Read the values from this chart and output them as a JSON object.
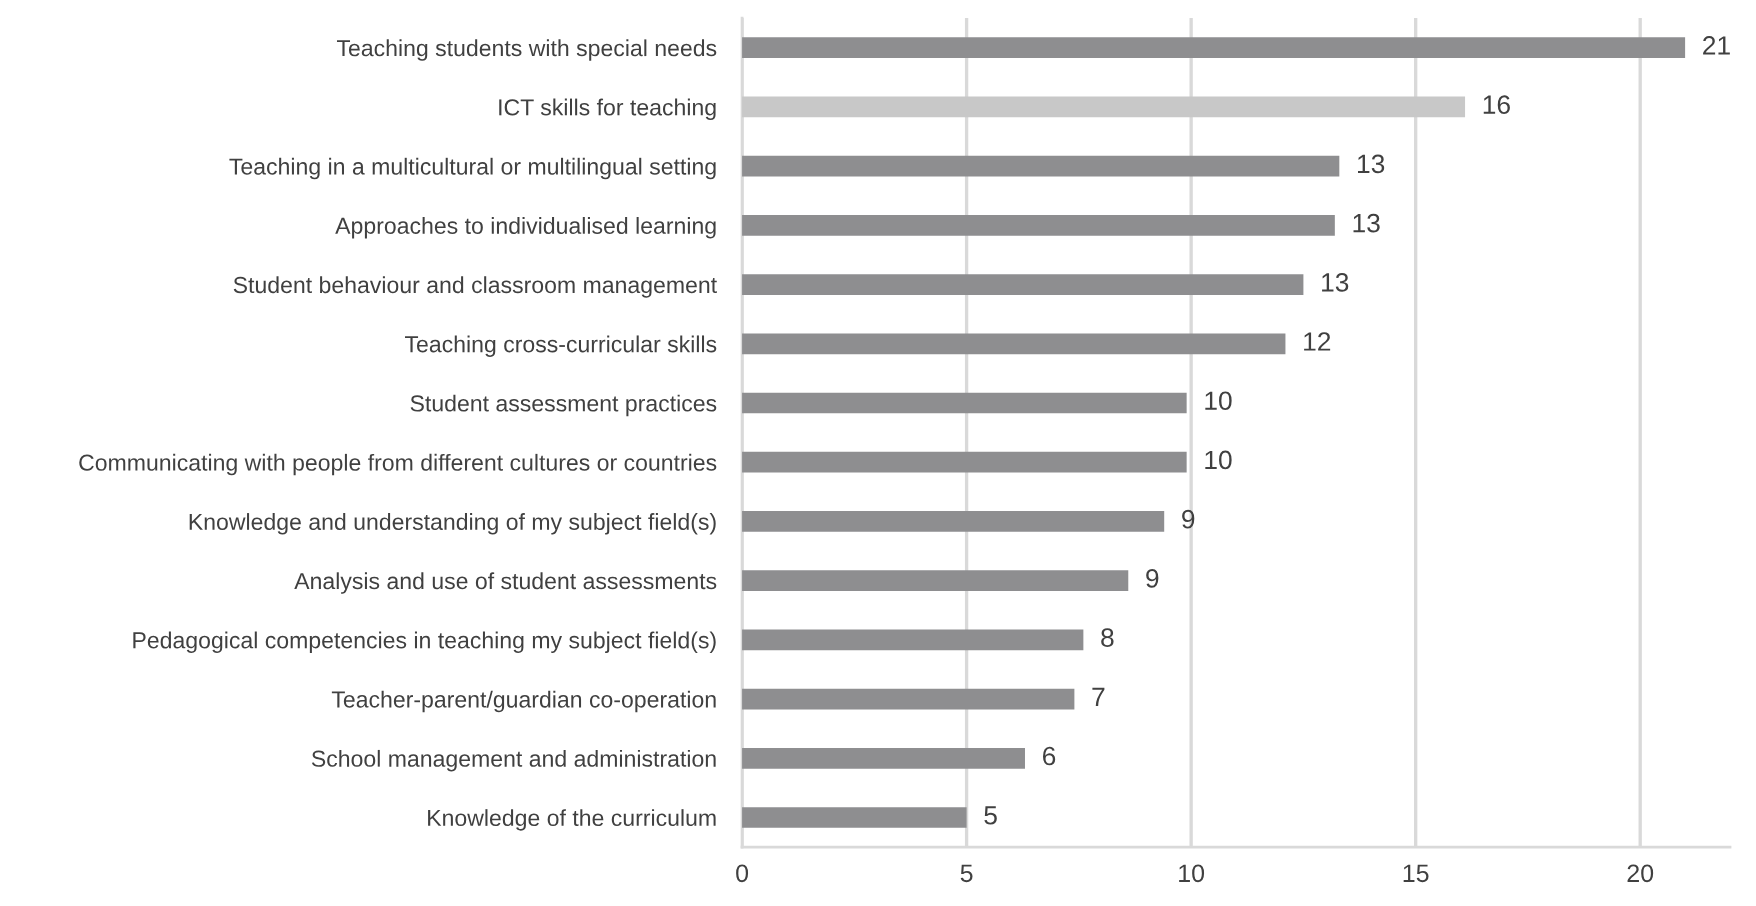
{
  "chart_data": {
    "type": "bar",
    "orientation": "horizontal",
    "categories": [
      "Teaching students with special needs",
      "ICT skills for teaching",
      "Teaching in a multicultural or multilingual setting",
      "Approaches to individualised learning",
      "Student behaviour and classroom management",
      "Teaching cross-curricular skills",
      "Student assessment practices",
      "Communicating with people from different cultures or countries",
      "Knowledge and understanding of my subject field(s)",
      "Analysis and use of student assessments",
      "Pedagogical competencies in teaching my subject field(s)",
      "Teacher-parent/guardian co-operation",
      "School management and administration",
      "Knowledge of the curriculum"
    ],
    "values": [
      21.0,
      16.1,
      13.3,
      13.2,
      12.5,
      12.1,
      9.9,
      9.9,
      9.4,
      8.6,
      7.6,
      7.4,
      6.3,
      5.0
    ],
    "value_labels": [
      "21",
      "16",
      "13",
      "13",
      "13",
      "12",
      "10",
      "10",
      "9",
      "9",
      "8",
      "7",
      "6",
      "5"
    ],
    "colors": [
      "#8e8e90",
      "#c8c8c8",
      "#8e8e90",
      "#8e8e90",
      "#8e8e90",
      "#8e8e90",
      "#8e8e90",
      "#8e8e90",
      "#8e8e90",
      "#8e8e90",
      "#8e8e90",
      "#8e8e90",
      "#8e8e90",
      "#8e8e90"
    ],
    "xlim": [
      0,
      22
    ],
    "xticks": [
      0,
      5,
      10,
      15,
      20
    ],
    "grid": "x"
  }
}
